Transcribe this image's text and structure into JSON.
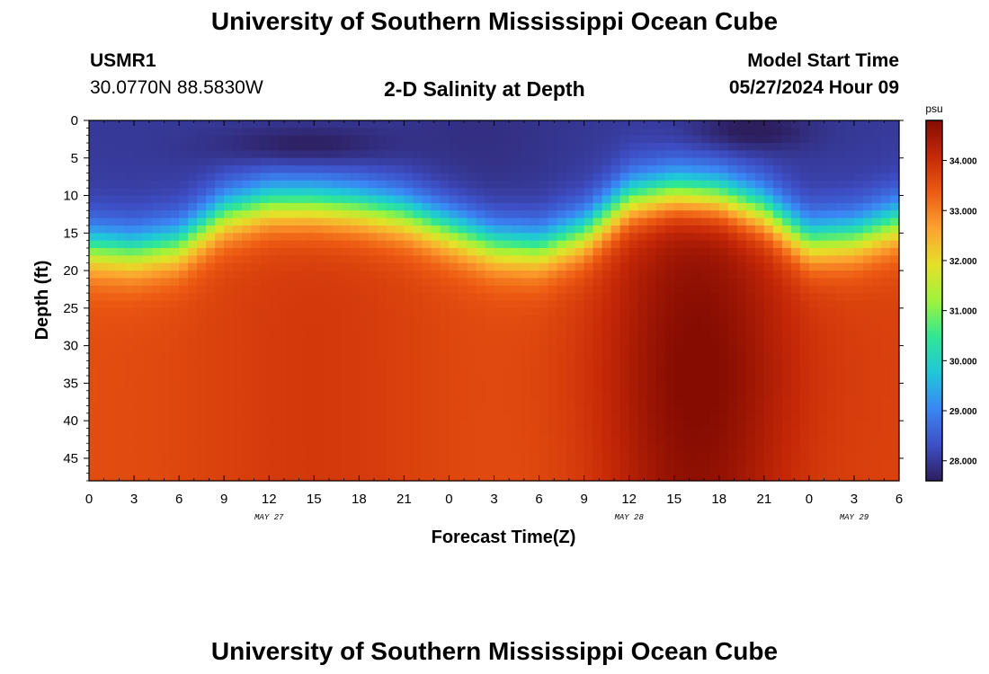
{
  "header": {
    "title": "University of Southern Mississippi Ocean Cube",
    "station_id": "USMR1",
    "station_coords": "30.0770N  88.5830W",
    "plot_title": "2-D Salinity at Depth",
    "model_start_label": "Model Start Time",
    "model_start_value": "05/27/2024 Hour 09"
  },
  "footer": {
    "title": "University of Southern Mississippi Ocean Cube"
  },
  "chart_data": {
    "type": "heatmap",
    "title": "2-D Salinity at Depth",
    "xlabel": "Forecast Time(Z)",
    "ylabel": "Depth (ft)",
    "x_ticks": [
      "0",
      "3",
      "6",
      "9",
      "12",
      "15",
      "18",
      "21",
      "0",
      "3",
      "6",
      "9",
      "12",
      "15",
      "18",
      "21",
      "0",
      "3",
      "6"
    ],
    "x_hours": [
      0,
      3,
      6,
      9,
      12,
      15,
      18,
      21,
      24,
      27,
      30,
      33,
      36,
      39,
      42,
      45,
      48,
      51,
      54
    ],
    "date_labels": [
      {
        "label": "MAY 27",
        "hour": 12
      },
      {
        "label": "MAY 28",
        "hour": 36
      },
      {
        "label": "MAY 29",
        "hour": 51
      }
    ],
    "y_ticks": [
      "0",
      "5",
      "10",
      "15",
      "20",
      "25",
      "30",
      "35",
      "40",
      "45"
    ],
    "y_values": [
      0,
      5,
      10,
      15,
      20,
      25,
      30,
      35,
      40,
      45
    ],
    "xlim": [
      0,
      54
    ],
    "ylim": [
      0,
      48
    ],
    "y_inverted": true,
    "colorbar": {
      "unit": "psu",
      "range": [
        27.6,
        34.8
      ],
      "ticks": [
        "28.000",
        "29.000",
        "30.000",
        "31.000",
        "32.000",
        "33.000",
        "34.000"
      ],
      "tick_values": [
        28,
        29,
        30,
        31,
        32,
        33,
        34
      ],
      "colors": [
        "#2d1e5e",
        "#3e4fc6",
        "#3a86f5",
        "#1fc7d9",
        "#2fe795",
        "#9ff33a",
        "#e5e028",
        "#fca32f",
        "#ee5b13",
        "#c62807",
        "#860c02"
      ]
    },
    "field_description_points": {
      "surface_salinity_psu": 28.0,
      "fresh_lens_dark_patches": [
        {
          "hours": [
            10,
            19
          ],
          "depth_ft": [
            2,
            5
          ],
          "psu": 27.6
        },
        {
          "hours": [
            41,
            47
          ],
          "depth_ft": [
            0,
            3
          ],
          "psu": 27.6
        }
      ],
      "halocline_depth_ft_by_hour": [
        [
          0,
          17
        ],
        [
          3,
          17.5
        ],
        [
          6,
          16.5
        ],
        [
          9,
          12.5
        ],
        [
          12,
          11
        ],
        [
          15,
          11
        ],
        [
          18,
          11.5
        ],
        [
          21,
          12.5
        ],
        [
          24,
          14.5
        ],
        [
          27,
          16.5
        ],
        [
          30,
          17
        ],
        [
          33,
          15
        ],
        [
          36,
          10.5
        ],
        [
          39,
          9.5
        ],
        [
          42,
          10
        ],
        [
          45,
          12
        ],
        [
          48,
          16
        ],
        [
          51,
          15.5
        ],
        [
          54,
          13.5
        ]
      ],
      "deep_salinity_psu_range": [
        33.5,
        34.8
      ]
    }
  }
}
